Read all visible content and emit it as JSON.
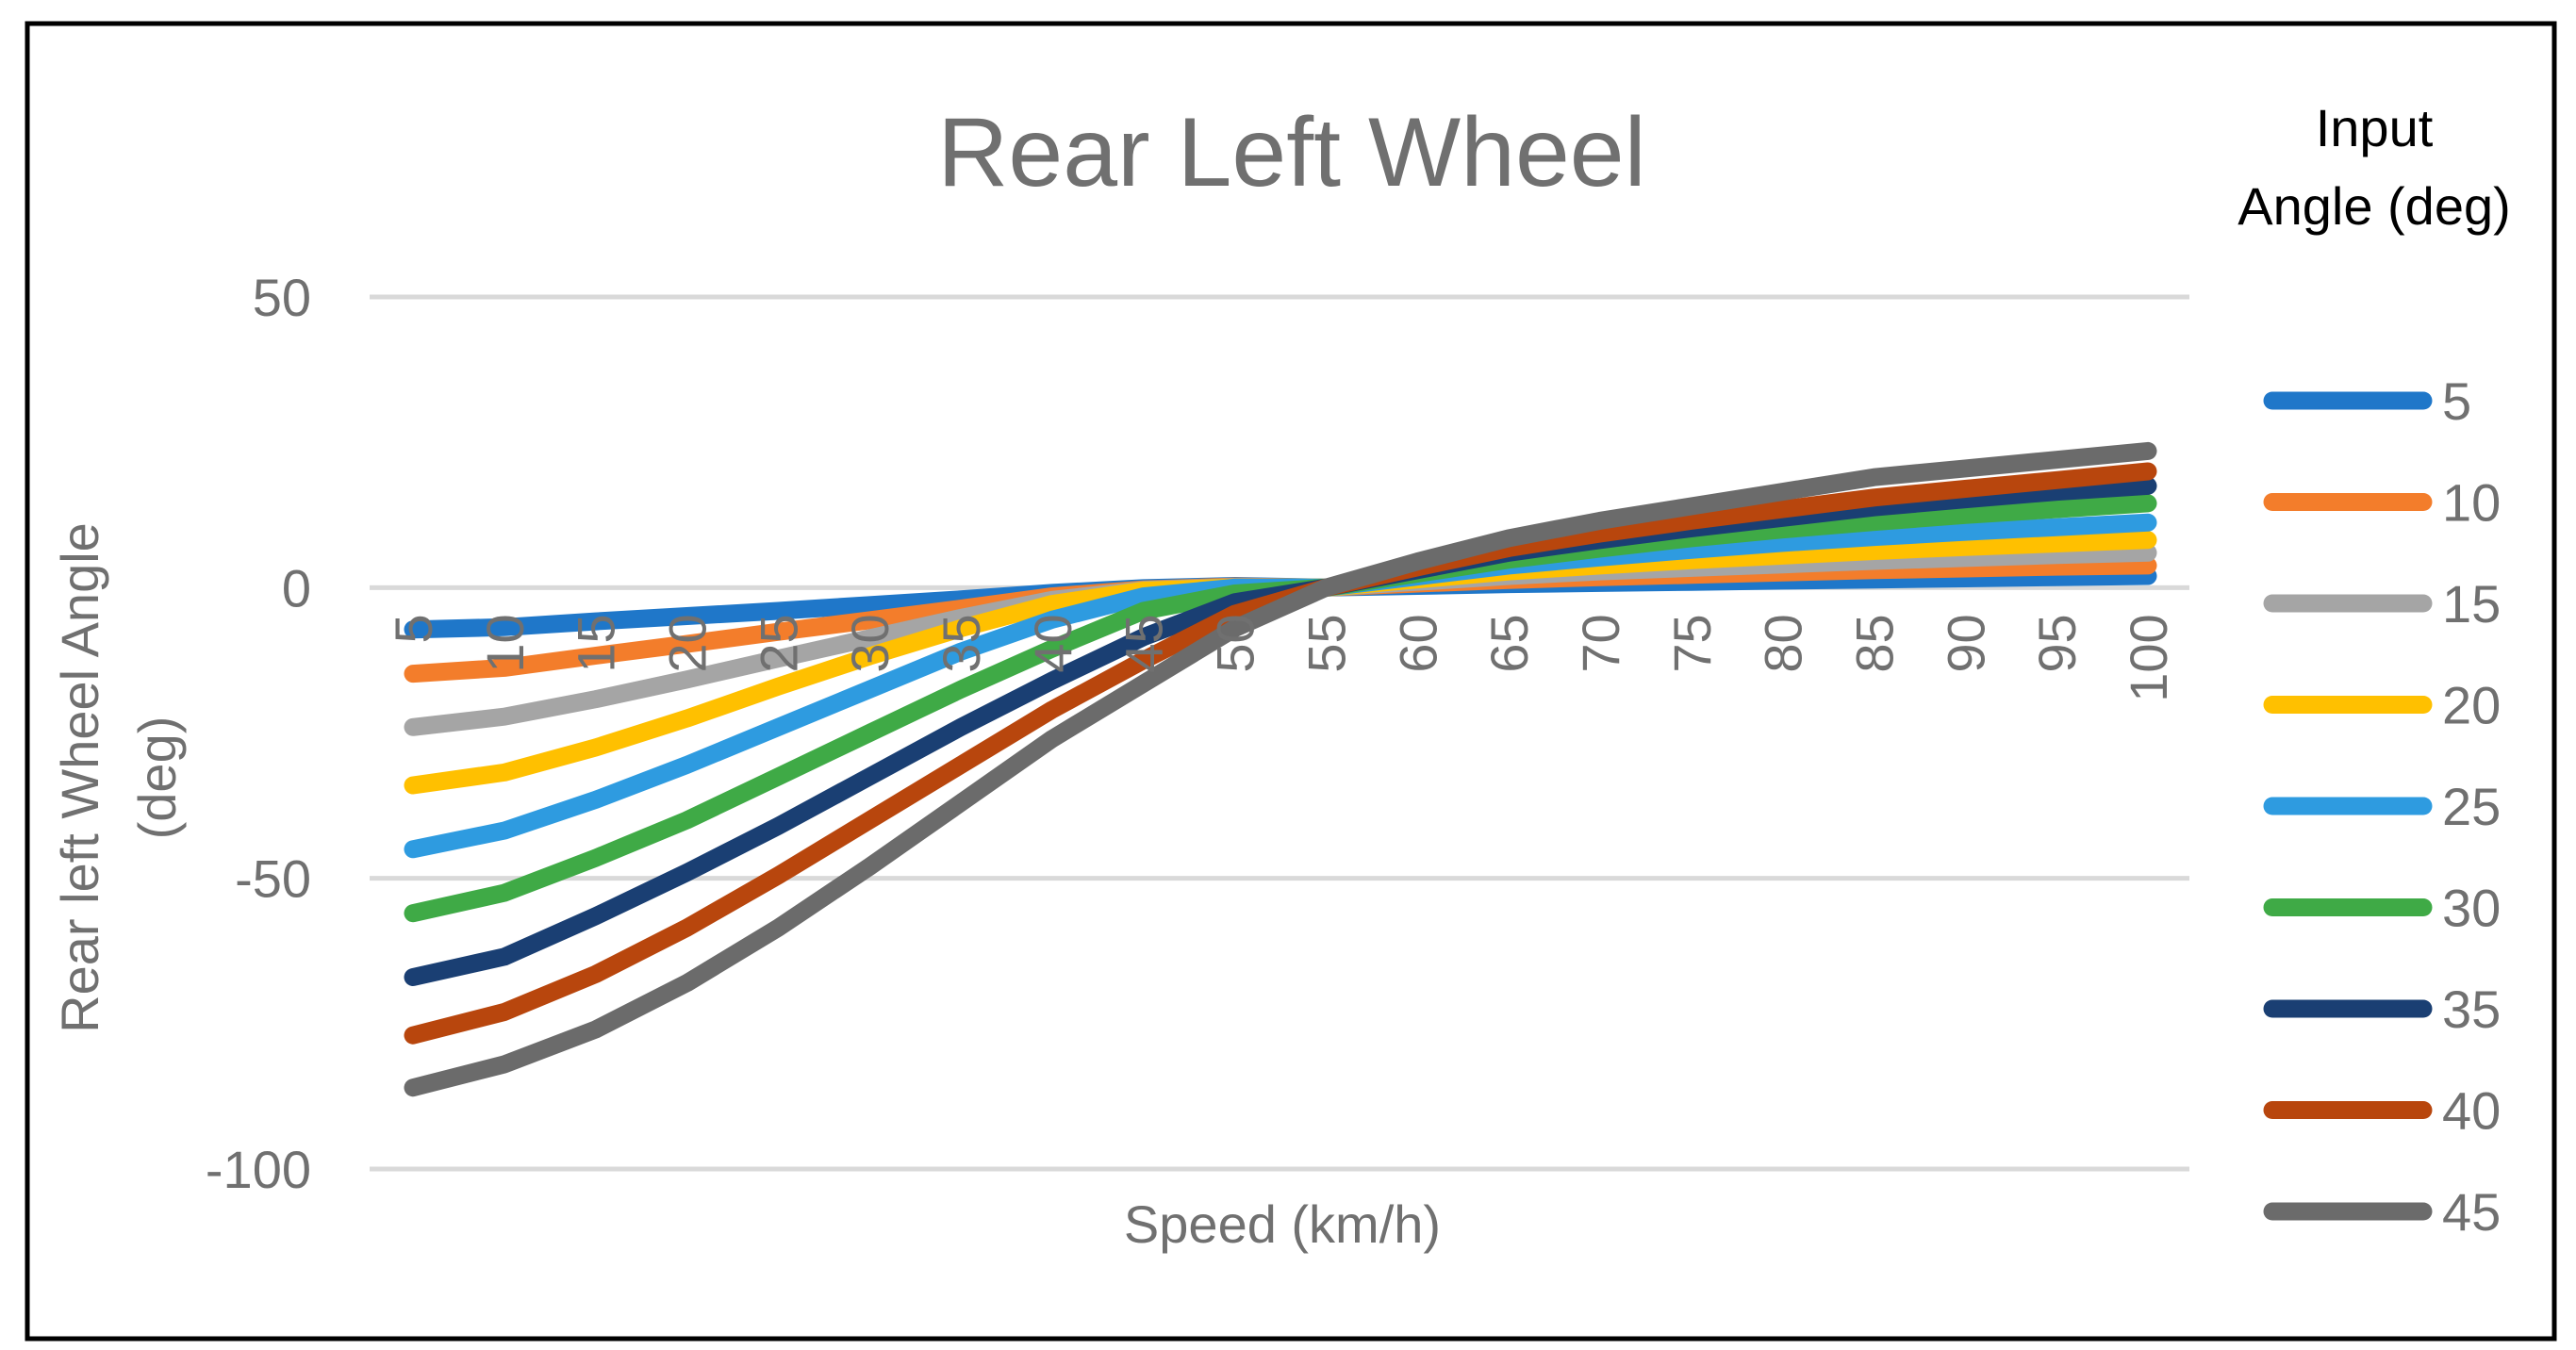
{
  "chart_data": {
    "type": "line",
    "title": "Rear Left Wheel",
    "xlabel": "Speed (km/h)",
    "ylabel_line1": "Rear left Wheel Angle",
    "ylabel_line2": "(deg)",
    "categories": [
      "5",
      "10",
      "15",
      "20",
      "25",
      "30",
      "35",
      "40",
      "45",
      "50",
      "55",
      "60",
      "65",
      "70",
      "75",
      "80",
      "85",
      "90",
      "95",
      "100"
    ],
    "x": [
      5,
      10,
      15,
      20,
      25,
      30,
      35,
      40,
      45,
      50,
      55,
      60,
      65,
      70,
      75,
      80,
      85,
      90,
      95,
      100
    ],
    "ylim": [
      -100,
      50
    ],
    "yticks": [
      50,
      0,
      -50,
      -100
    ],
    "ytick_labels": [
      "50",
      "0",
      "-50",
      "-100"
    ],
    "grid": true,
    "legend_title_line1": "Input",
    "legend_title_line2": "Angle (deg)",
    "legend_position": "right",
    "series": [
      {
        "name": "5",
        "color": "#1f77c9",
        "values": [
          -7.2,
          -6.8,
          -5.8,
          -4.9,
          -4.0,
          -3.0,
          -2.0,
          -0.9,
          -0.1,
          0.3,
          0.0,
          0.3,
          0.6,
          0.8,
          1.0,
          1.2,
          1.4,
          1.6,
          1.8,
          2.0
        ]
      },
      {
        "name": "10",
        "color": "#f37d2b",
        "values": [
          -14.8,
          -13.8,
          -11.7,
          -9.7,
          -7.6,
          -5.6,
          -3.6,
          -1.5,
          -0.3,
          0.2,
          0.0,
          0.7,
          1.3,
          1.8,
          2.2,
          2.6,
          3.0,
          3.3,
          3.6,
          3.8
        ]
      },
      {
        "name": "15",
        "color": "#a5a5a5",
        "values": [
          -24.0,
          -22.2,
          -19.2,
          -15.8,
          -12.2,
          -8.7,
          -5.2,
          -2.1,
          -0.4,
          0.1,
          0.0,
          1.0,
          2.0,
          2.8,
          3.4,
          4.0,
          4.6,
          5.1,
          5.6,
          6.0
        ]
      },
      {
        "name": "20",
        "color": "#ffc000",
        "values": [
          -34.0,
          -31.8,
          -27.5,
          -22.5,
          -17.0,
          -11.8,
          -7.0,
          -2.8,
          -0.5,
          0.0,
          0.0,
          1.4,
          2.8,
          3.8,
          4.7,
          5.5,
          6.3,
          7.0,
          7.6,
          8.2
        ]
      },
      {
        "name": "25",
        "color": "#2e9be0",
        "values": [
          -45.0,
          -41.8,
          -36.5,
          -30.5,
          -24.0,
          -17.5,
          -11.0,
          -5.5,
          -1.5,
          0.0,
          0.0,
          1.9,
          3.8,
          5.2,
          6.5,
          7.7,
          8.7,
          9.6,
          10.4,
          11.2
        ]
      },
      {
        "name": "30",
        "color": "#3faa46",
        "values": [
          -56.0,
          -52.5,
          -46.5,
          -40.0,
          -32.5,
          -25.0,
          -17.5,
          -10.5,
          -4.0,
          -1.0,
          0.0,
          2.4,
          4.8,
          6.7,
          8.5,
          10.0,
          11.3,
          12.5,
          13.5,
          14.5
        ]
      },
      {
        "name": "35",
        "color": "#1a3f73",
        "values": [
          -67.0,
          -63.5,
          -56.5,
          -49.0,
          -41.0,
          -32.5,
          -24.0,
          -16.0,
          -8.5,
          -2.5,
          0.0,
          3.0,
          6.0,
          8.2,
          10.2,
          12.0,
          13.8,
          15.2,
          16.5,
          17.5
        ]
      },
      {
        "name": "40",
        "color": "#b8460d",
        "values": [
          -77.0,
          -73.0,
          -66.5,
          -58.5,
          -49.5,
          -40.0,
          -30.5,
          -21.0,
          -12.5,
          -4.5,
          0.0,
          3.5,
          6.8,
          9.3,
          11.5,
          13.5,
          15.5,
          17.0,
          18.5,
          20.0
        ]
      },
      {
        "name": "45",
        "color": "#6b6b6b",
        "values": [
          -86.0,
          -82.0,
          -76.0,
          -68.0,
          -58.5,
          -48.0,
          -37.0,
          -26.0,
          -16.5,
          -7.0,
          0.0,
          4.5,
          8.5,
          11.5,
          14.0,
          16.5,
          19.0,
          20.5,
          22.0,
          23.5
        ]
      }
    ]
  }
}
